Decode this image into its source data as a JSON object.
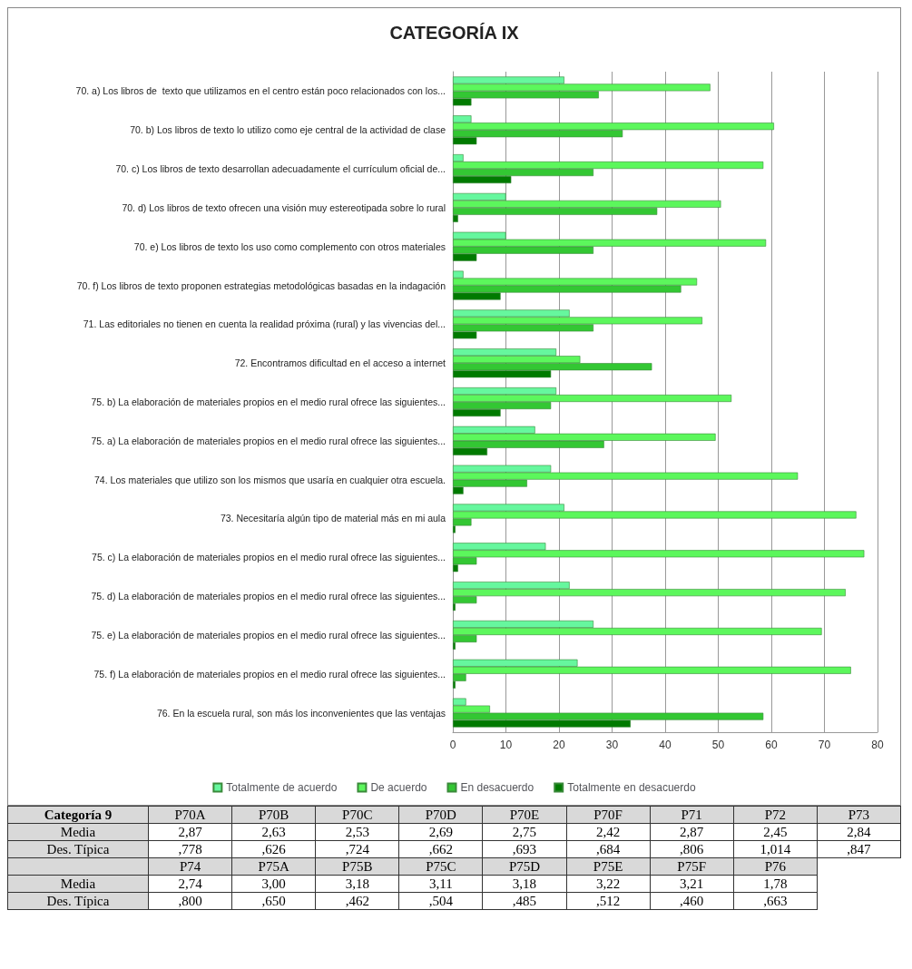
{
  "chart_data": [
    {
      "type": "bar",
      "title": "CATEGORÍA IX",
      "orientation": "horizontal",
      "grid": "x",
      "legend": "bottom",
      "categories": [
        "70. a) Los libros de  texto que utilizamos en el centro están poco relacionados con los...",
        "70. b) Los libros de texto lo utilizo como eje central de la actividad de clase",
        "70. c) Los libros de texto desarrollan adecuadamente el currículum oficial de...",
        "70. d) Los libros de texto ofrecen una visión muy estereotipada sobre lo rural",
        "70. e) Los libros de texto los uso como complemento con otros materiales",
        "70. f) Los libros de texto proponen estrategias metodológicas basadas en la indagación",
        "71. Las editoriales no tienen en cuenta la realidad próxima (rural) y las vivencias del...",
        "72. Encontramos dificultad en el acceso a internet",
        "75. b) La elaboración de materiales propios en el medio rural ofrece las siguientes...",
        "75. a) La elaboración de materiales propios en el medio rural ofrece las siguientes...",
        "74. Los materiales que utilizo son los mismos que usaría en cualquier otra escuela.",
        "73. Necesitaría algún tipo de material más en mi aula",
        "75. c) La elaboración de materiales propios en el medio rural ofrece las siguientes...",
        "75. d) La elaboración de materiales propios en el medio rural ofrece las siguientes...",
        "75. e) La elaboración de materiales propios en el medio rural ofrece las siguientes...",
        "75. f) La elaboración de materiales propios en el medio rural ofrece las siguientes...",
        "76. En la escuela rural, son más los inconvenientes que las ventajas"
      ],
      "series": [
        {
          "name": "Totalmente de acuerdo",
          "color": "#66f79e",
          "values": [
            21,
            3.5,
            2,
            10,
            10,
            2,
            22,
            19.5,
            19.5,
            15.5,
            18.5,
            21,
            17.5,
            22,
            26.5,
            23.5,
            2.5
          ]
        },
        {
          "name": "De acuerdo",
          "color": "#5cf75c",
          "values": [
            48.5,
            60.5,
            58.5,
            50.5,
            59,
            46,
            47,
            24,
            52.5,
            49.5,
            65,
            76,
            77.5,
            74,
            69.5,
            75,
            7
          ]
        },
        {
          "name": "En desacuerdo",
          "color": "#33c733",
          "values": [
            27.5,
            32,
            26.5,
            38.5,
            26.5,
            43,
            26.5,
            37.5,
            18.5,
            28.5,
            14,
            3.5,
            4.5,
            4.5,
            4.5,
            2.5,
            58.5
          ]
        },
        {
          "name": "Totalmente en desacuerdo",
          "color": "#007a00",
          "values": [
            3.5,
            4.5,
            11,
            1,
            4.5,
            9,
            4.5,
            18.5,
            9,
            6.5,
            2,
            0.5,
            1,
            0.5,
            0.5,
            0.5,
            33.5
          ]
        }
      ],
      "xlim": [
        0,
        80
      ],
      "xticks": [
        0,
        10,
        20,
        30,
        40,
        50,
        60,
        70,
        80
      ]
    },
    {
      "type": "other",
      "annotations": [
        "Categoría 9",
        "P70A",
        "P70B",
        "P70C",
        "P70D",
        "P70E",
        "P70F",
        "P71",
        "P72",
        "P73",
        "Media",
        "2,87",
        "2,63",
        "2,53",
        "2,69",
        "2,75",
        "2,42",
        "2,87",
        "2,45",
        "2,84",
        "Des. Típica",
        ",778",
        ",626",
        ",724",
        ",662",
        ",693",
        ",684",
        ",806",
        "1,014",
        ",847",
        "P74",
        "P75A",
        "P75B",
        "P75C",
        "P75D",
        "P75E",
        "P75F",
        "P76",
        "Media",
        "2,74",
        "3,00",
        "3,18",
        "3,11",
        "3,18",
        "3,22",
        "3,21",
        "1,78",
        "Des. Típica",
        ",800",
        ",650",
        ",462",
        ",504",
        ",485",
        ",512",
        ",460",
        ",663"
      ]
    }
  ]
}
